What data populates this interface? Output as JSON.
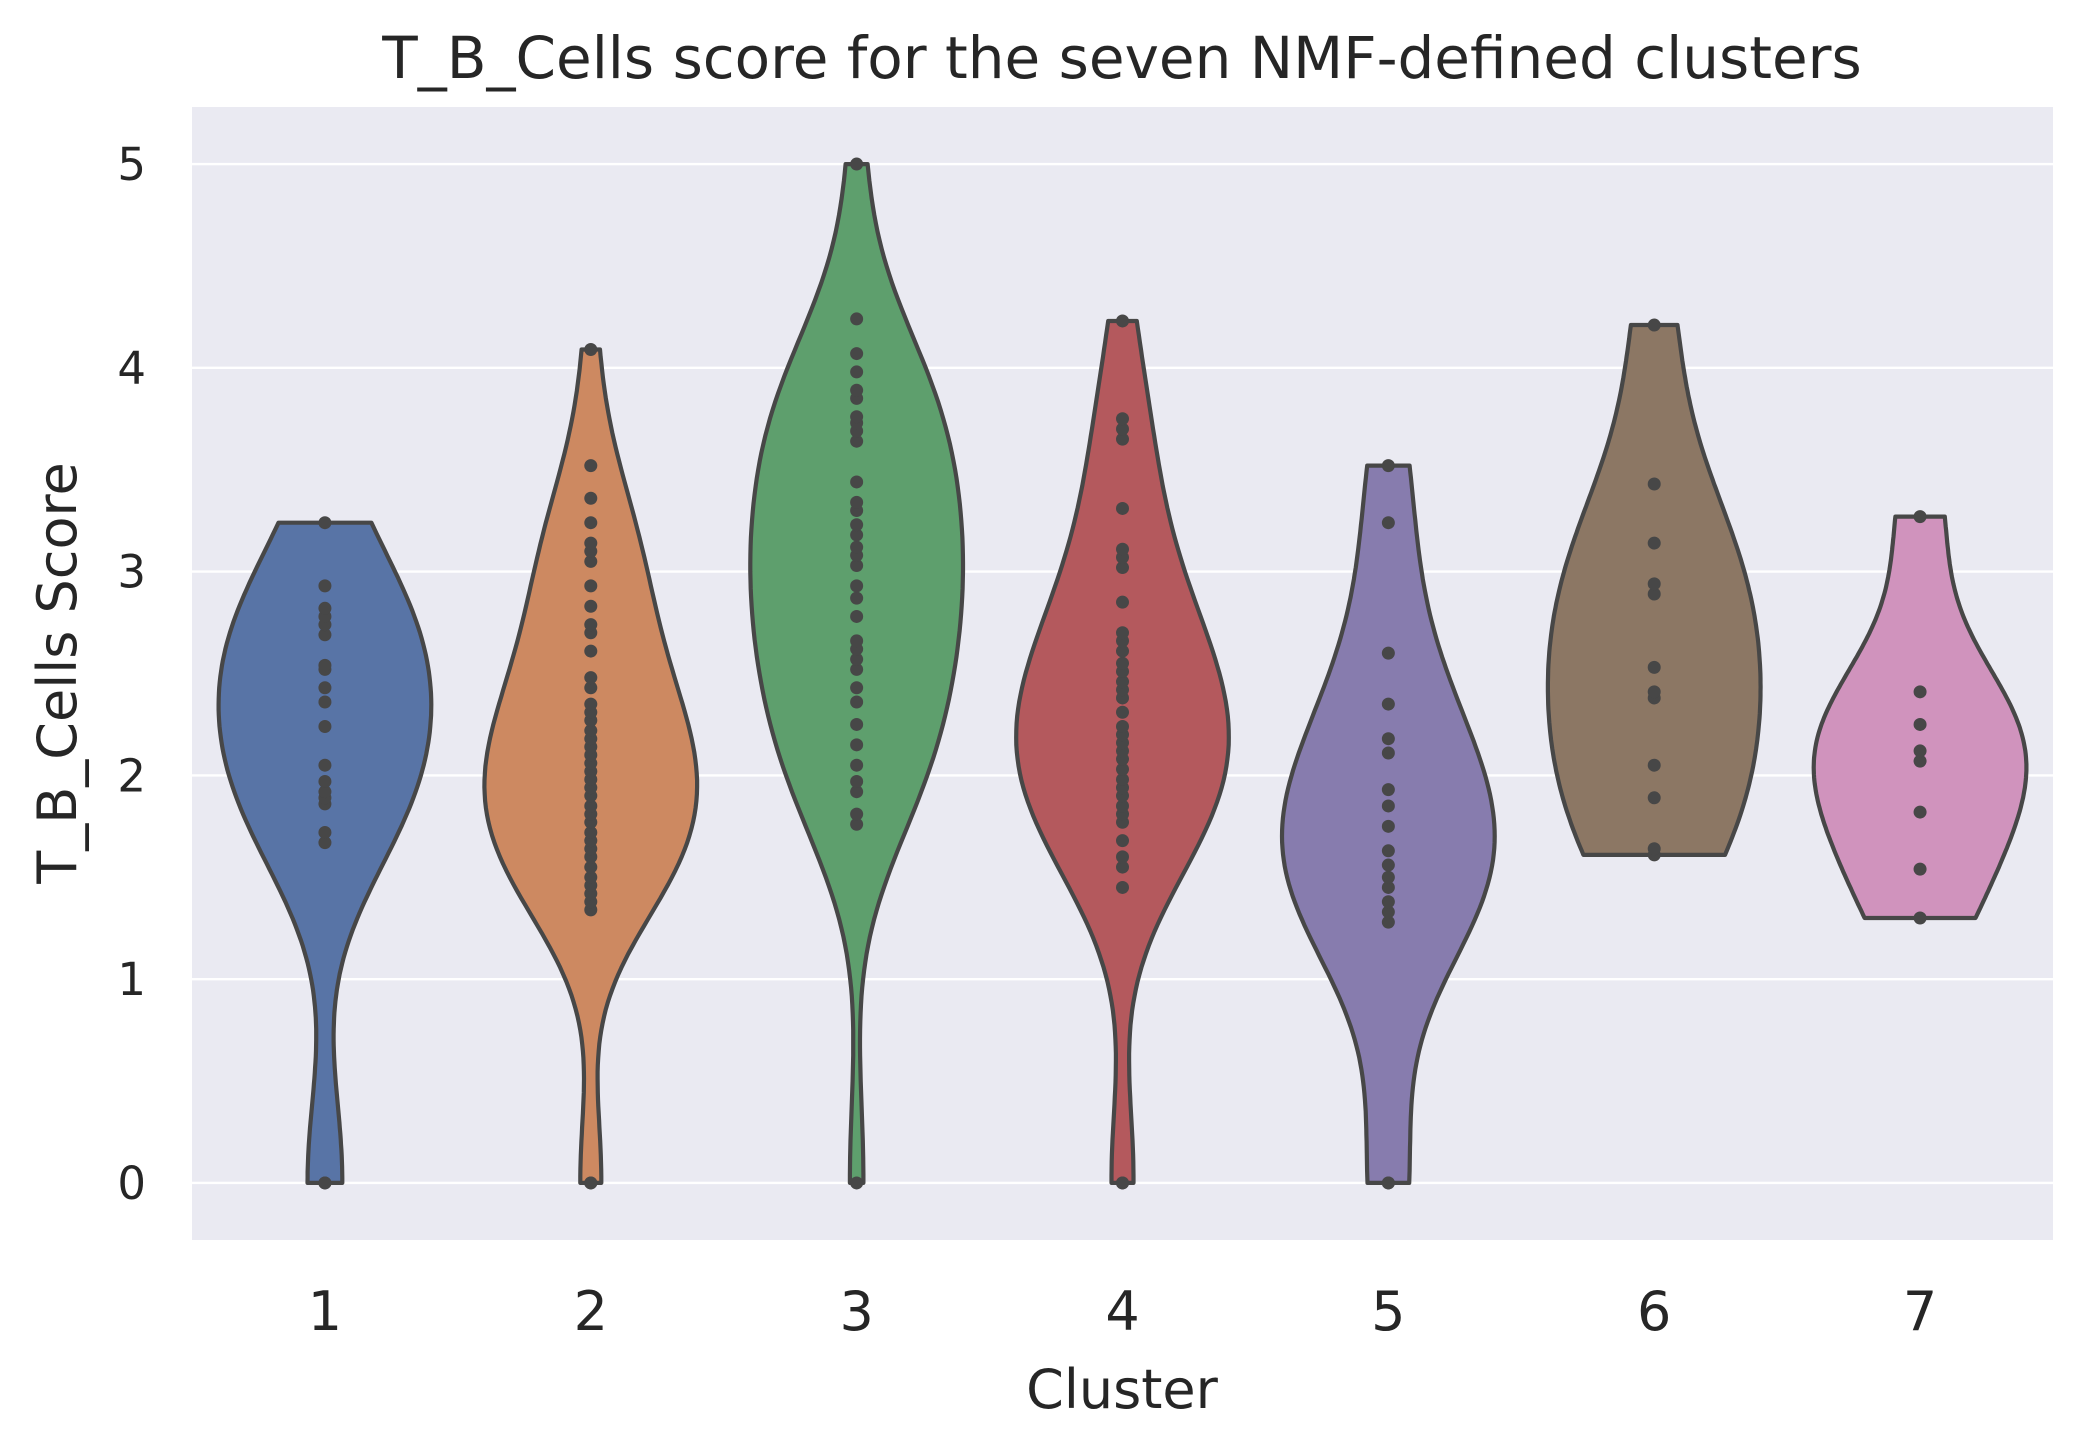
{
  "chart_data": {
    "type": "violin",
    "title": "T_B_Cells score for the seven NMF-defined clusters",
    "xlabel": "Cluster",
    "ylabel": "T_B_Cells Score",
    "categories": [
      "1",
      "2",
      "3",
      "4",
      "5",
      "6",
      "7"
    ],
    "ylim": [
      -0.28,
      5.28
    ],
    "yticks": [
      "0",
      "1",
      "2",
      "3",
      "4",
      "5"
    ],
    "grid": true,
    "colors": [
      "#5874a6",
      "#cd8961",
      "#5e9f6d",
      "#b4595d",
      "#877cae",
      "#8c7764",
      "#d093bd"
    ],
    "series": [
      {
        "values": [
          0,
          0,
          1.67,
          1.72,
          1.86,
          1.89,
          1.92,
          1.97,
          2.05,
          2.24,
          2.36,
          2.43,
          2.52,
          2.54,
          2.69,
          2.74,
          2.78,
          2.82,
          2.93,
          3.24
        ]
      },
      {
        "values": [
          0,
          0,
          1.34,
          1.38,
          1.42,
          1.46,
          1.5,
          1.55,
          1.6,
          1.64,
          1.68,
          1.72,
          1.77,
          1.81,
          1.85,
          1.9,
          1.94,
          1.98,
          2.02,
          2.06,
          2.1,
          2.14,
          2.18,
          2.22,
          2.27,
          2.31,
          2.35,
          2.43,
          2.48,
          2.61,
          2.7,
          2.74,
          2.83,
          2.93,
          3.05,
          3.1,
          3.14,
          3.24,
          3.36,
          3.52,
          4.09
        ]
      },
      {
        "values": [
          0,
          1.76,
          1.81,
          1.92,
          1.97,
          2.05,
          2.15,
          2.25,
          2.36,
          2.43,
          2.52,
          2.57,
          2.62,
          2.66,
          2.78,
          2.87,
          2.93,
          3.03,
          3.08,
          3.12,
          3.18,
          3.23,
          3.3,
          3.34,
          3.44,
          3.64,
          3.69,
          3.73,
          3.76,
          3.85,
          3.89,
          3.98,
          4.07,
          4.24,
          5.0
        ]
      },
      {
        "values": [
          0,
          0,
          1.45,
          1.55,
          1.6,
          1.68,
          1.77,
          1.81,
          1.85,
          1.9,
          1.94,
          1.98,
          2.03,
          2.08,
          2.12,
          2.16,
          2.2,
          2.24,
          2.31,
          2.38,
          2.42,
          2.46,
          2.51,
          2.55,
          2.61,
          2.66,
          2.7,
          2.85,
          3.02,
          3.07,
          3.11,
          3.31,
          3.65,
          3.7,
          3.75,
          4.23
        ]
      },
      {
        "values": [
          0,
          0,
          1.28,
          1.33,
          1.38,
          1.45,
          1.5,
          1.56,
          1.63,
          1.75,
          1.85,
          1.93,
          2.11,
          2.18,
          2.35,
          2.6,
          3.24,
          3.52
        ]
      },
      {
        "values": [
          1.61,
          1.64,
          1.89,
          2.05,
          2.38,
          2.41,
          2.53,
          2.89,
          2.94,
          3.14,
          3.43,
          4.21
        ]
      },
      {
        "values": [
          1.3,
          1.54,
          1.82,
          2.07,
          2.12,
          2.25,
          2.41,
          3.27
        ]
      }
    ]
  }
}
